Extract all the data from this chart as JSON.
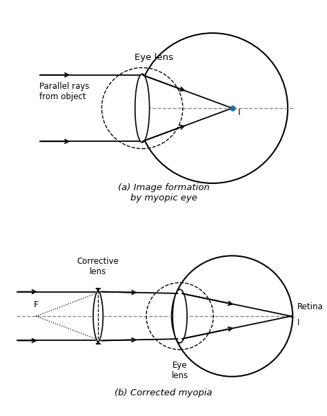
{
  "bg_color": "#ffffff",
  "image_point_color": "#1a6fa8",
  "title_a": "(a) Image formation\nby myopic eye",
  "title_b": "(b) Corrected myopia",
  "label_eye_lens_a": "Eye lens",
  "label_parallel": "Parallel rays\nfrom object",
  "label_I_a": "I",
  "label_corrective": "Corrective\nlens",
  "label_eye_lens_b": "Eye\nlens",
  "label_retina": "Retina",
  "label_I_b": "I",
  "label_F": "F"
}
